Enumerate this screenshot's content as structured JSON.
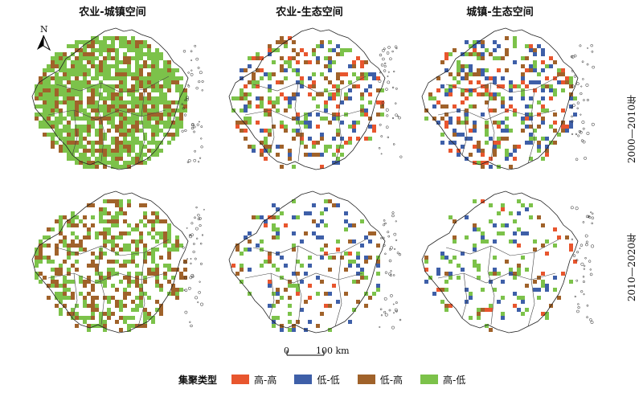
{
  "columns": [
    "农业-城镇空间",
    "农业-生态空间",
    "城镇-生态空间"
  ],
  "rows": [
    "2000—2010年",
    "2010—2020年"
  ],
  "north_label": "N",
  "scale": {
    "zero": "0",
    "end": "100 km"
  },
  "legend": {
    "title": "集聚类型",
    "items": [
      {
        "label": "高-高",
        "color": "#e8562e"
      },
      {
        "label": "低-低",
        "color": "#3e5fa8"
      },
      {
        "label": "低-高",
        "color": "#a0622a"
      },
      {
        "label": "高-低",
        "color": "#7cc24a"
      }
    ]
  },
  "panels": [
    {
      "row": 0,
      "col": 0,
      "density": {
        "hh": 0.0,
        "ll": 0.0,
        "lh": 0.22,
        "hl": 0.55
      }
    },
    {
      "row": 0,
      "col": 1,
      "density": {
        "hh": 0.06,
        "ll": 0.06,
        "lh": 0.08,
        "hl": 0.1
      }
    },
    {
      "row": 0,
      "col": 2,
      "density": {
        "hh": 0.07,
        "ll": 0.1,
        "lh": 0.07,
        "hl": 0.07
      }
    },
    {
      "row": 1,
      "col": 0,
      "density": {
        "hh": 0.0,
        "ll": 0.0,
        "lh": 0.18,
        "hl": 0.22
      }
    },
    {
      "row": 1,
      "col": 1,
      "density": {
        "hh": 0.02,
        "ll": 0.06,
        "lh": 0.04,
        "hl": 0.07
      }
    },
    {
      "row": 1,
      "col": 2,
      "density": {
        "hh": 0.02,
        "ll": 0.04,
        "lh": 0.03,
        "hl": 0.06
      }
    }
  ]
}
